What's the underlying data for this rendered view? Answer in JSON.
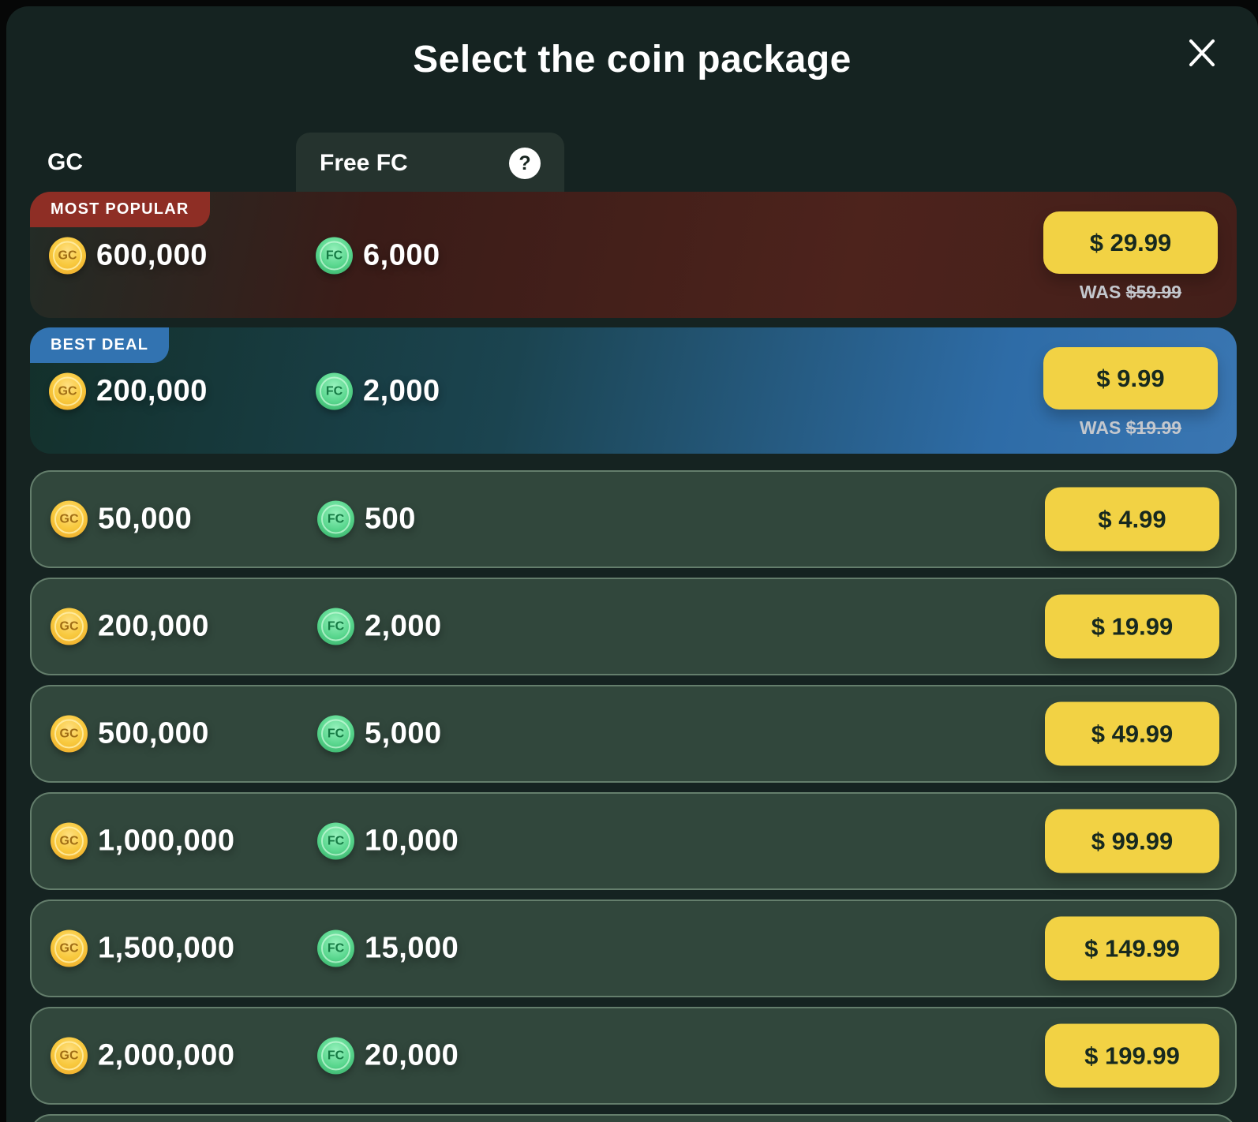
{
  "modal": {
    "title": "Select the coin package"
  },
  "tabs": {
    "gc_label": "GC",
    "free_fc_label": "Free FC",
    "help_glyph": "?"
  },
  "coin_icons": {
    "gc_letters": "GC",
    "fc_letters": "FC"
  },
  "packages": [
    {
      "variant": "most-popular",
      "badge": "MOST POPULAR",
      "gc": "600,000",
      "fc": "6,000",
      "price": "$ 29.99",
      "was_label": "WAS",
      "was_price": "$59.99"
    },
    {
      "variant": "best-deal",
      "badge": "BEST DEAL",
      "gc": "200,000",
      "fc": "2,000",
      "price": "$ 9.99",
      "was_label": "WAS",
      "was_price": "$19.99"
    },
    {
      "gc": "50,000",
      "fc": "500",
      "price": "$ 4.99"
    },
    {
      "gc": "200,000",
      "fc": "2,000",
      "price": "$ 19.99"
    },
    {
      "gc": "500,000",
      "fc": "5,000",
      "price": "$ 49.99"
    },
    {
      "gc": "1,000,000",
      "fc": "10,000",
      "price": "$ 99.99"
    },
    {
      "gc": "1,500,000",
      "fc": "15,000",
      "price": "$ 149.99"
    },
    {
      "gc": "2,000,000",
      "fc": "20,000",
      "price": "$ 199.99"
    }
  ],
  "colors": {
    "accent_yellow": "#f2d244",
    "most_popular_badge": "#8e2e25",
    "best_deal_badge": "#3273b1",
    "modal_background": "#152321",
    "row_background": "#31473c"
  }
}
